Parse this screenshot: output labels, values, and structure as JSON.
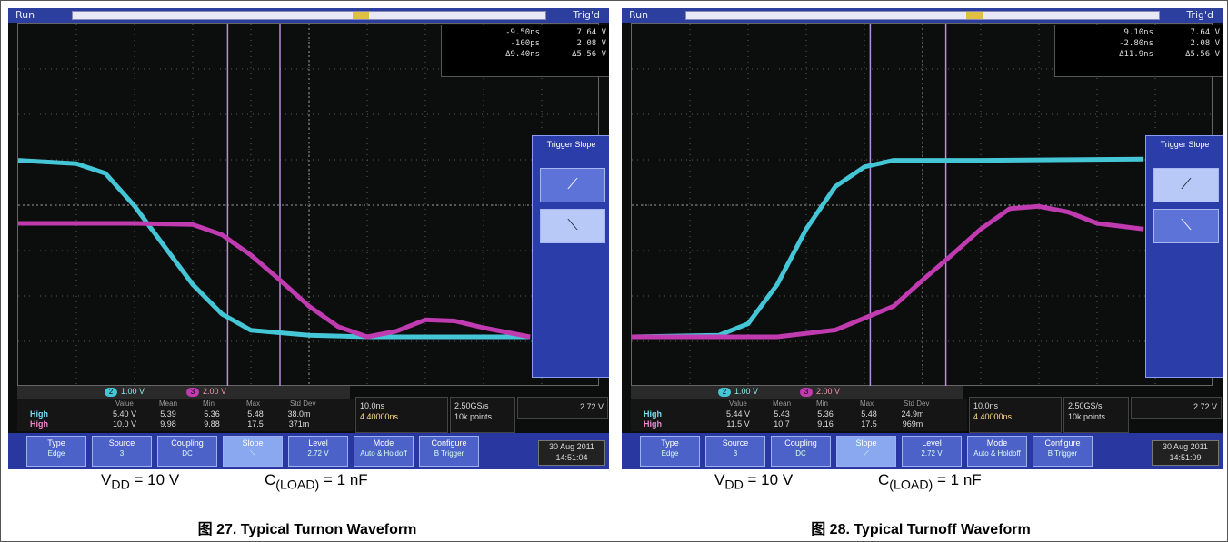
{
  "panels": [
    {
      "scope": {
        "status": "Run",
        "trigger_state": "Trig'd",
        "cursor_readout": [
          {
            "time": "-9.50ns",
            "volt": "7.64 V"
          },
          {
            "time": "-100ps",
            "volt": "2.08 V"
          },
          {
            "time": "Δ9.40ns",
            "volt": "Δ5.56 V"
          }
        ],
        "trigger_slope_menu": {
          "title": "Trigger Slope",
          "options": [
            "rising",
            "falling"
          ],
          "selected": "falling"
        },
        "channel_scales": {
          "ch2": "1.00 V",
          "ch3": "2.00 V",
          "ch2_badge": "2",
          "ch3_badge": "3"
        },
        "stats_headers": [
          "Value",
          "Mean",
          "Min",
          "Max",
          "Std Dev"
        ],
        "stats_rows": [
          {
            "label": "High",
            "channel": "2",
            "values": [
              "5.40 V",
              "5.39",
              "5.36",
              "5.48",
              "38.0m"
            ]
          },
          {
            "label": "High",
            "channel": "3",
            "values": [
              "10.0 V",
              "9.98",
              "9.88",
              "17.5",
              "371m"
            ]
          }
        ],
        "horizontal": {
          "line1": "10.0ns",
          "line2": "4.40000ns"
        },
        "acq": {
          "line1": "2.50GS/s",
          "line2": "10k points"
        },
        "trigger_level_box": "2.72 V",
        "buttons": [
          {
            "title": "Type",
            "value": "Edge"
          },
          {
            "title": "Source",
            "value": "3"
          },
          {
            "title": "Coupling",
            "value": "DC"
          },
          {
            "title": "Slope",
            "value": "falling",
            "selected": true
          },
          {
            "title": "Level",
            "value": "2.72 V"
          },
          {
            "title": "Mode",
            "value": "Auto & Holdoff"
          },
          {
            "title": "Configure",
            "value": "B Trigger"
          }
        ],
        "date": "30 Aug 2011",
        "time": "14:51:04"
      },
      "labels": {
        "vdd_prefix": "V",
        "vdd_sub": "DD",
        "vdd_value": "= 10 V",
        "cload_prefix": "C",
        "cload_sub": "(LOAD)",
        "cload_value": "= 1 nF"
      },
      "caption": "图 27. Typical Turnon Waveform"
    },
    {
      "scope": {
        "status": "Run",
        "trigger_state": "Trig'd",
        "cursor_readout": [
          {
            "time": "9.10ns",
            "volt": "7.64 V"
          },
          {
            "time": "-2.80ns",
            "volt": "2.08 V"
          },
          {
            "time": "Δ11.9ns",
            "volt": "Δ5.56 V"
          }
        ],
        "trigger_slope_menu": {
          "title": "Trigger Slope",
          "options": [
            "rising",
            "falling"
          ],
          "selected": "rising"
        },
        "channel_scales": {
          "ch2": "1.00 V",
          "ch3": "2.00 V",
          "ch2_badge": "2",
          "ch3_badge": "3"
        },
        "stats_headers": [
          "Value",
          "Mean",
          "Min",
          "Max",
          "Std Dev"
        ],
        "stats_rows": [
          {
            "label": "High",
            "channel": "2",
            "values": [
              "5.44 V",
              "5.43",
              "5.36",
              "5.48",
              "24.9m"
            ]
          },
          {
            "label": "High",
            "channel": "3",
            "values": [
              "11.5 V",
              "10.7",
              "9.16",
              "17.5",
              "969m"
            ]
          }
        ],
        "horizontal": {
          "line1": "10.0ns",
          "line2": "4.40000ns"
        },
        "acq": {
          "line1": "2.50GS/s",
          "line2": "10k points"
        },
        "trigger_level_box": "2.72 V",
        "buttons": [
          {
            "title": "Type",
            "value": "Edge"
          },
          {
            "title": "Source",
            "value": "3"
          },
          {
            "title": "Coupling",
            "value": "DC"
          },
          {
            "title": "Slope",
            "value": "rising",
            "selected": true
          },
          {
            "title": "Level",
            "value": "2.72 V"
          },
          {
            "title": "Mode",
            "value": "Auto & Holdoff"
          },
          {
            "title": "Configure",
            "value": "B Trigger"
          }
        ],
        "date": "30 Aug 2011",
        "time": "14:51:09"
      },
      "labels": {
        "vdd_prefix": "V",
        "vdd_sub": "DD",
        "vdd_value": "= 10 V",
        "cload_prefix": "C",
        "cload_sub": "(LOAD)",
        "cload_value": "= 1 nF"
      },
      "caption": "图 28. Typical Turnoff Waveform"
    }
  ],
  "colors": {
    "ch2_trace": "#45c6d6",
    "ch3_trace": "#c03ab0",
    "cursor": "#b48ee0",
    "background": "#0c0d0d",
    "menu_blue": "#2b3da8"
  },
  "chart_data": [
    {
      "type": "line",
      "title": "",
      "xlabel": "",
      "ylabel": "",
      "x_divisions": 10,
      "y_divisions": 8,
      "series": [
        {
          "channel": "2",
          "volts_per_div": 1.0,
          "x": [
            0,
            1.0,
            1.5,
            2.0,
            2.5,
            3.0,
            3.5,
            4.0,
            5.0,
            6.0,
            7.0,
            8.0,
            8.8
          ],
          "y": [
            5.4,
            5.3,
            5.0,
            4.0,
            2.8,
            1.6,
            0.7,
            0.2,
            0.05,
            0.0,
            0.0,
            0.0,
            0.0
          ]
        },
        {
          "channel": "3",
          "volts_per_div": 2.0,
          "x": [
            0,
            2.0,
            3.0,
            3.5,
            4.0,
            4.5,
            5.0,
            5.5,
            6.0,
            6.5,
            7.0,
            7.5,
            8.0,
            8.8
          ],
          "y": [
            10.0,
            10.0,
            9.9,
            9.0,
            7.2,
            5.0,
            2.7,
            0.9,
            0.0,
            0.5,
            1.5,
            1.4,
            0.8,
            0.0
          ]
        }
      ],
      "cursors_div": [
        3.6,
        4.5
      ]
    },
    {
      "type": "line",
      "title": "",
      "xlabel": "",
      "ylabel": "",
      "x_divisions": 10,
      "y_divisions": 8,
      "series": [
        {
          "channel": "2",
          "volts_per_div": 1.0,
          "x": [
            0,
            1.5,
            2.0,
            2.5,
            3.0,
            3.5,
            4.0,
            4.5,
            6.0,
            8.8
          ],
          "y": [
            0.0,
            0.05,
            0.4,
            1.6,
            3.3,
            4.6,
            5.2,
            5.4,
            5.4,
            5.44
          ]
        },
        {
          "channel": "3",
          "volts_per_div": 2.0,
          "x": [
            0,
            2.5,
            3.5,
            4.5,
            5.0,
            5.5,
            6.0,
            6.5,
            7.0,
            7.5,
            8.0,
            8.8
          ],
          "y": [
            0.0,
            0.0,
            0.6,
            2.7,
            5.0,
            7.2,
            9.5,
            11.3,
            11.5,
            11.0,
            10.0,
            9.5
          ]
        }
      ],
      "cursors_div": [
        4.1,
        5.4
      ]
    }
  ]
}
